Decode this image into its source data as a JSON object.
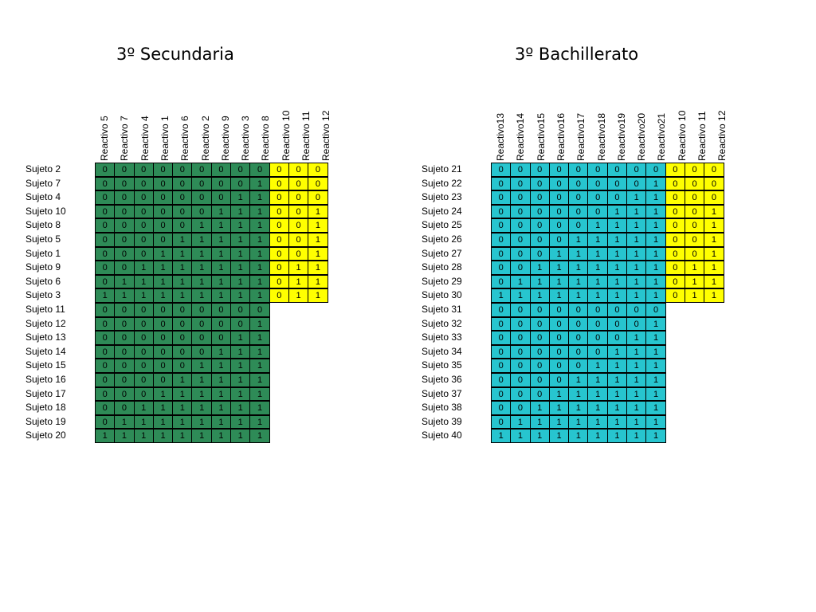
{
  "tables": [
    {
      "title": "3º Secundaria",
      "headers": [
        "Reactivo 5",
        "Reactivo 7",
        "Reactivo 4",
        "Reactivo 1",
        "Reactivo 6",
        "Reactivo 2",
        "Reactivo 9",
        "Reactivo 3",
        "Reactivo 8",
        "Reactivo 10",
        "Reactivo 11",
        "Reactivo 12"
      ],
      "main_color": "#2e8b57",
      "accent_color": "#ffff00",
      "main_columns": 9,
      "rows": [
        {
          "label": "Sujeto 2",
          "values": [
            "0",
            "0",
            "0",
            "0",
            "0",
            "0",
            "0",
            "0",
            "0",
            "0",
            "0",
            "0"
          ]
        },
        {
          "label": "Sujeto 7",
          "values": [
            "0",
            "0",
            "0",
            "0",
            "0",
            "0",
            "0",
            "0",
            "1",
            "0",
            "0",
            "0"
          ]
        },
        {
          "label": "Sujeto 4",
          "values": [
            "0",
            "0",
            "0",
            "0",
            "0",
            "0",
            "0",
            "1",
            "1",
            "0",
            "0",
            "0"
          ]
        },
        {
          "label": "Sujeto 10",
          "values": [
            "0",
            "0",
            "0",
            "0",
            "0",
            "0",
            "1",
            "1",
            "1",
            "0",
            "0",
            "1"
          ]
        },
        {
          "label": "Sujeto 8",
          "values": [
            "0",
            "0",
            "0",
            "0",
            "0",
            "1",
            "1",
            "1",
            "1",
            "0",
            "0",
            "1"
          ]
        },
        {
          "label": "Sujeto 5",
          "values": [
            "0",
            "0",
            "0",
            "0",
            "1",
            "1",
            "1",
            "1",
            "1",
            "0",
            "0",
            "1"
          ]
        },
        {
          "label": "Sujeto 1",
          "values": [
            "0",
            "0",
            "0",
            "1",
            "1",
            "1",
            "1",
            "1",
            "1",
            "0",
            "0",
            "1"
          ]
        },
        {
          "label": "Sujeto 9",
          "values": [
            "0",
            "0",
            "1",
            "1",
            "1",
            "1",
            "1",
            "1",
            "1",
            "0",
            "1",
            "1"
          ]
        },
        {
          "label": "Sujeto 6",
          "values": [
            "0",
            "1",
            "1",
            "1",
            "1",
            "1",
            "1",
            "1",
            "1",
            "0",
            "1",
            "1"
          ]
        },
        {
          "label": "Sujeto 3",
          "values": [
            "1",
            "1",
            "1",
            "1",
            "1",
            "1",
            "1",
            "1",
            "1",
            "0",
            "1",
            "1"
          ]
        },
        {
          "label": "Sujeto 11",
          "values": [
            "0",
            "0",
            "0",
            "0",
            "0",
            "0",
            "0",
            "0",
            "0"
          ]
        },
        {
          "label": "Sujeto 12",
          "values": [
            "0",
            "0",
            "0",
            "0",
            "0",
            "0",
            "0",
            "0",
            "1"
          ]
        },
        {
          "label": "Sujeto 13",
          "values": [
            "0",
            "0",
            "0",
            "0",
            "0",
            "0",
            "0",
            "1",
            "1"
          ]
        },
        {
          "label": "Sujeto 14",
          "values": [
            "0",
            "0",
            "0",
            "0",
            "0",
            "0",
            "1",
            "1",
            "1"
          ]
        },
        {
          "label": "Sujeto 15",
          "values": [
            "0",
            "0",
            "0",
            "0",
            "0",
            "1",
            "1",
            "1",
            "1"
          ]
        },
        {
          "label": "Sujeto 16",
          "values": [
            "0",
            "0",
            "0",
            "0",
            "1",
            "1",
            "1",
            "1",
            "1"
          ]
        },
        {
          "label": "Sujeto 17",
          "values": [
            "0",
            "0",
            "0",
            "1",
            "1",
            "1",
            "1",
            "1",
            "1"
          ]
        },
        {
          "label": "Sujeto 18",
          "values": [
            "0",
            "0",
            "1",
            "1",
            "1",
            "1",
            "1",
            "1",
            "1"
          ]
        },
        {
          "label": "Sujeto 19",
          "values": [
            "0",
            "1",
            "1",
            "1",
            "1",
            "1",
            "1",
            "1",
            "1"
          ]
        },
        {
          "label": "Sujeto 20",
          "values": [
            "1",
            "1",
            "1",
            "1",
            "1",
            "1",
            "1",
            "1",
            "1"
          ]
        }
      ]
    },
    {
      "title": "3º Bachillerato",
      "headers": [
        "Reactivo13",
        "Reactivo14",
        "Reactivo15",
        "Reactivo16",
        "Reactivo17",
        "Reactivo18",
        "Reactivo19",
        "Reactivo20",
        "Reactivo21",
        "Reactivo 10",
        "Reactivo 11",
        "Reactivo 12"
      ],
      "main_color": "#27c5cf",
      "accent_color": "#ffff00",
      "main_columns": 9,
      "rows": [
        {
          "label": "Sujeto 21",
          "values": [
            "0",
            "0",
            "0",
            "0",
            "0",
            "0",
            "0",
            "0",
            "0",
            "0",
            "0",
            "0"
          ]
        },
        {
          "label": "Sujeto 22",
          "values": [
            "0",
            "0",
            "0",
            "0",
            "0",
            "0",
            "0",
            "0",
            "1",
            "0",
            "0",
            "0"
          ]
        },
        {
          "label": "Sujeto 23",
          "values": [
            "0",
            "0",
            "0",
            "0",
            "0",
            "0",
            "0",
            "1",
            "1",
            "0",
            "0",
            "0"
          ]
        },
        {
          "label": "Sujeto 24",
          "values": [
            "0",
            "0",
            "0",
            "0",
            "0",
            "0",
            "1",
            "1",
            "1",
            "0",
            "0",
            "1"
          ]
        },
        {
          "label": "Sujeto 25",
          "values": [
            "0",
            "0",
            "0",
            "0",
            "0",
            "1",
            "1",
            "1",
            "1",
            "0",
            "0",
            "1"
          ]
        },
        {
          "label": "Sujeto 26",
          "values": [
            "0",
            "0",
            "0",
            "0",
            "1",
            "1",
            "1",
            "1",
            "1",
            "0",
            "0",
            "1"
          ]
        },
        {
          "label": "Sujeto 27",
          "values": [
            "0",
            "0",
            "0",
            "1",
            "1",
            "1",
            "1",
            "1",
            "1",
            "0",
            "0",
            "1"
          ]
        },
        {
          "label": "Sujeto 28",
          "values": [
            "0",
            "0",
            "1",
            "1",
            "1",
            "1",
            "1",
            "1",
            "1",
            "0",
            "1",
            "1"
          ]
        },
        {
          "label": "Sujeto 29",
          "values": [
            "0",
            "1",
            "1",
            "1",
            "1",
            "1",
            "1",
            "1",
            "1",
            "0",
            "1",
            "1"
          ]
        },
        {
          "label": "Sujeto 30",
          "values": [
            "1",
            "1",
            "1",
            "1",
            "1",
            "1",
            "1",
            "1",
            "1",
            "0",
            "1",
            "1"
          ]
        },
        {
          "label": "Sujeto 31",
          "values": [
            "0",
            "0",
            "0",
            "0",
            "0",
            "0",
            "0",
            "0",
            "0"
          ]
        },
        {
          "label": "Sujeto 32",
          "values": [
            "0",
            "0",
            "0",
            "0",
            "0",
            "0",
            "0",
            "0",
            "1"
          ]
        },
        {
          "label": "Sujeto 33",
          "values": [
            "0",
            "0",
            "0",
            "0",
            "0",
            "0",
            "0",
            "1",
            "1"
          ]
        },
        {
          "label": "Sujeto 34",
          "values": [
            "0",
            "0",
            "0",
            "0",
            "0",
            "0",
            "1",
            "1",
            "1"
          ]
        },
        {
          "label": "Sujeto 35",
          "values": [
            "0",
            "0",
            "0",
            "0",
            "0",
            "1",
            "1",
            "1",
            "1"
          ]
        },
        {
          "label": "Sujeto 36",
          "values": [
            "0",
            "0",
            "0",
            "0",
            "1",
            "1",
            "1",
            "1",
            "1"
          ]
        },
        {
          "label": "Sujeto 37",
          "values": [
            "0",
            "0",
            "0",
            "1",
            "1",
            "1",
            "1",
            "1",
            "1"
          ]
        },
        {
          "label": "Sujeto 38",
          "values": [
            "0",
            "0",
            "1",
            "1",
            "1",
            "1",
            "1",
            "1",
            "1"
          ]
        },
        {
          "label": "Sujeto 39",
          "values": [
            "0",
            "1",
            "1",
            "1",
            "1",
            "1",
            "1",
            "1",
            "1"
          ]
        },
        {
          "label": "Sujeto 40",
          "values": [
            "1",
            "1",
            "1",
            "1",
            "1",
            "1",
            "1",
            "1",
            "1"
          ]
        }
      ]
    }
  ]
}
